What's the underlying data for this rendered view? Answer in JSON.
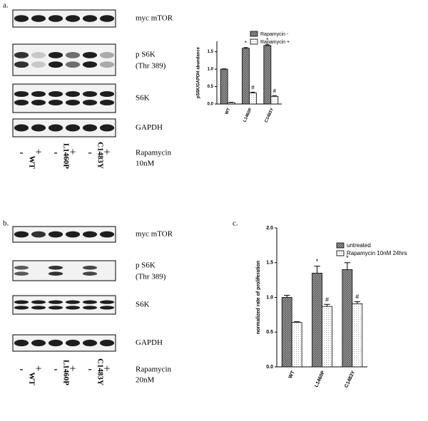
{
  "panels": [
    "a.",
    "b.",
    "c."
  ],
  "blots": [
    {
      "bands": [
        "myc mTOR",
        "p S6K",
        "(Thr 389)",
        "S6K",
        "GAPDH"
      ],
      "signs": [
        "-",
        "+",
        "-",
        "+",
        "-",
        "+"
      ],
      "treatment": "Rapamycin",
      "dose": "10nM",
      "samples": [
        "WT",
        "L1460P",
        "C1483Y"
      ]
    },
    {
      "bands": [
        "myc mTOR",
        "p S6K",
        "(Thr 389)",
        "S6K",
        "GAPDH"
      ],
      "signs": [
        "-",
        "+",
        "-",
        "+",
        "-",
        "+"
      ],
      "treatment": "Rapamycin",
      "dose": "20nM",
      "samples": [
        "WT",
        "L1460P",
        "C1483Y"
      ]
    }
  ],
  "chart_data": [
    {
      "type": "bar",
      "ylabel": "pS6K/GAPDH abundance",
      "categories": [
        "WT",
        "L1460P",
        "C1483Y"
      ],
      "series": [
        {
          "name": "Rapamycin -",
          "color": "#8a8a8a",
          "values": [
            1.0,
            1.6,
            1.68
          ],
          "errors": [
            0.01,
            0.02,
            0.02
          ],
          "markers": [
            null,
            "*",
            "*"
          ]
        },
        {
          "name": "Rapamycin +",
          "color": "#ffffff",
          "values": [
            0.04,
            0.32,
            0.22
          ],
          "errors": [
            0.01,
            0.02,
            0.02
          ],
          "markers": [
            null,
            "#",
            "#"
          ]
        }
      ],
      "ylim": [
        0,
        1.8
      ],
      "yticks": [
        {
          "value": 0,
          "label": "0.0"
        },
        {
          "value": 0.5,
          "label": "0.5"
        },
        {
          "value": 1,
          "label": "1.0"
        },
        {
          "value": 1.5,
          "label": "1.5"
        }
      ],
      "legend": "top-right"
    },
    {
      "type": "bar",
      "ylabel": "normalized rate of proliferation",
      "categories": [
        "WT",
        "L1460P",
        "C1483Y"
      ],
      "series": [
        {
          "name": "untreated",
          "color": "#8a8a8a",
          "values": [
            1.0,
            1.35,
            1.4
          ],
          "errors": [
            0.03,
            0.1,
            0.1
          ],
          "markers": [
            null,
            "*",
            "*"
          ]
        },
        {
          "name": "Rapamycin 10nM 24hrs",
          "color": "#ffffff",
          "values": [
            0.64,
            0.87,
            0.91
          ],
          "errors": [
            0.01,
            0.03,
            0.03
          ],
          "markers": [
            null,
            "#",
            "#"
          ]
        }
      ],
      "ylim": [
        0,
        2
      ],
      "yticks": [
        {
          "value": 0,
          "label": "0.0"
        },
        {
          "value": 0.5,
          "label": "0.5"
        },
        {
          "value": 1,
          "label": "1.0"
        },
        {
          "value": 1.5,
          "label": "1.5"
        },
        {
          "value": 2,
          "label": "2.0"
        }
      ],
      "legend": "top-right"
    }
  ]
}
